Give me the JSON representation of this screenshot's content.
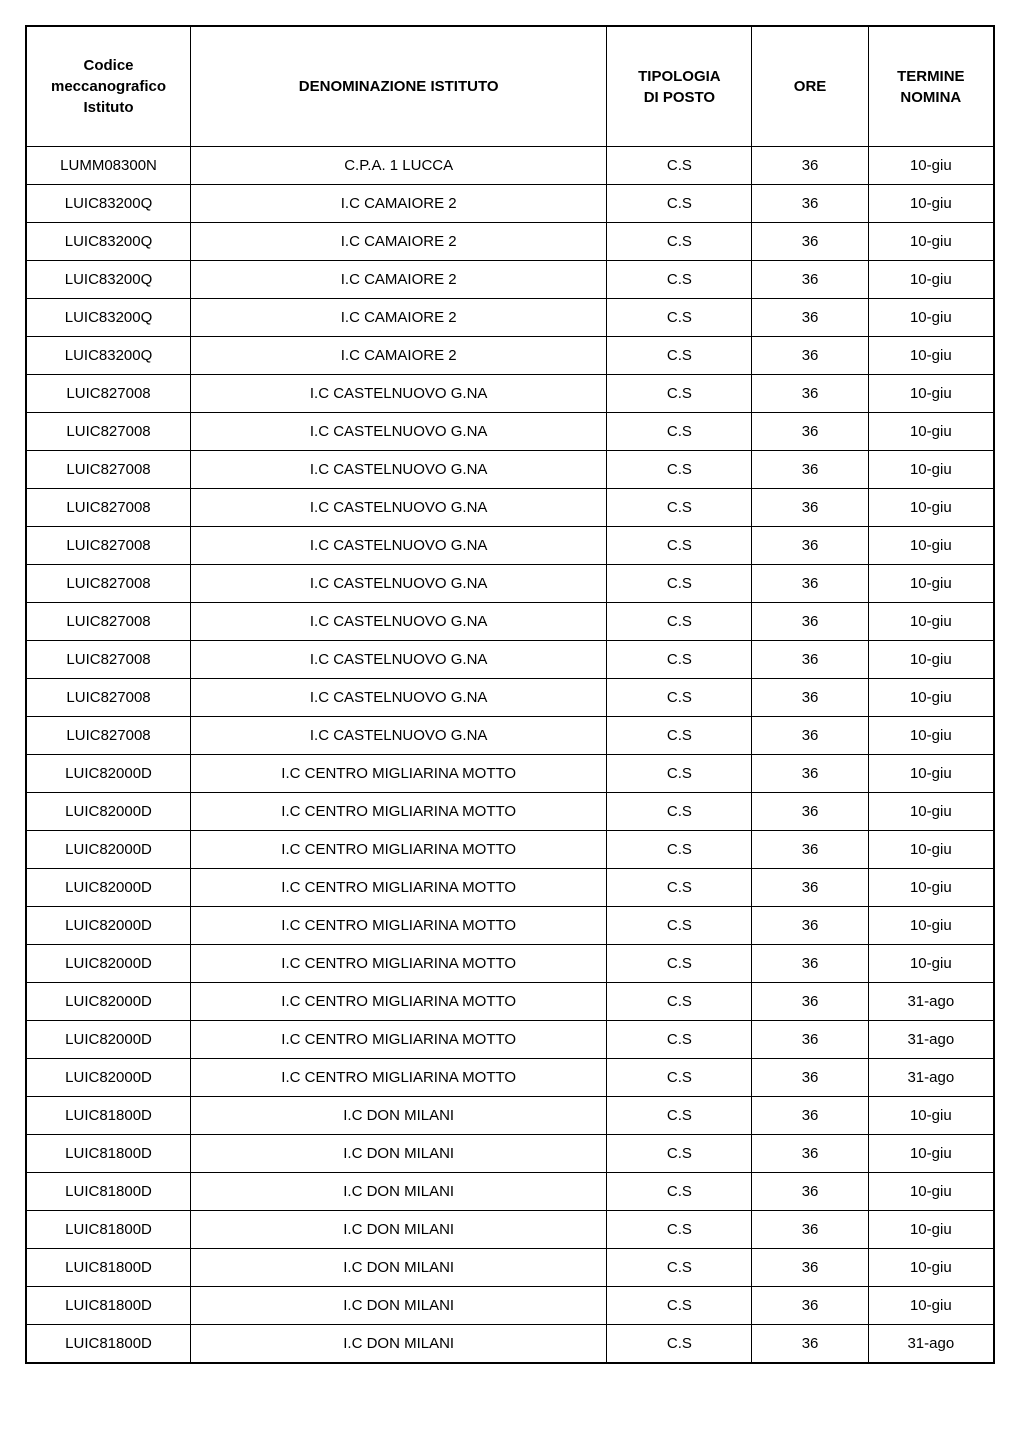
{
  "table": {
    "columns": [
      {
        "key": "codice",
        "label_lines": [
          "Codice",
          "meccanografico",
          "Istituto"
        ],
        "width": "17%",
        "align": "center",
        "font_weight": "bold"
      },
      {
        "key": "denominazione",
        "label_lines": [
          "DENOMINAZIONE ISTITUTO"
        ],
        "width": "43%",
        "align": "center",
        "font_weight": "bold"
      },
      {
        "key": "tipologia",
        "label_lines": [
          "TIPOLOGIA",
          "DI POSTO"
        ],
        "width": "15%",
        "align": "center",
        "font_weight": "bold"
      },
      {
        "key": "ore",
        "label_lines": [
          "ORE"
        ],
        "width": "12%",
        "align": "center",
        "font_weight": "bold"
      },
      {
        "key": "termine",
        "label_lines": [
          "TERMINE",
          "NOMINA"
        ],
        "width": "13%",
        "align": "center",
        "font_weight": "bold"
      }
    ],
    "rows": [
      [
        "LUMM08300N",
        "C.P.A. 1 LUCCA",
        "C.S",
        "36",
        "10-giu"
      ],
      [
        "LUIC83200Q",
        "I.C CAMAIORE 2",
        "C.S",
        "36",
        "10-giu"
      ],
      [
        "LUIC83200Q",
        "I.C CAMAIORE 2",
        "C.S",
        "36",
        "10-giu"
      ],
      [
        "LUIC83200Q",
        "I.C CAMAIORE 2",
        "C.S",
        "36",
        "10-giu"
      ],
      [
        "LUIC83200Q",
        "I.C CAMAIORE 2",
        "C.S",
        "36",
        "10-giu"
      ],
      [
        "LUIC83200Q",
        "I.C CAMAIORE 2",
        "C.S",
        "36",
        "10-giu"
      ],
      [
        "LUIC827008",
        "I.C CASTELNUOVO G.NA",
        "C.S",
        "36",
        "10-giu"
      ],
      [
        "LUIC827008",
        "I.C CASTELNUOVO G.NA",
        "C.S",
        "36",
        "10-giu"
      ],
      [
        "LUIC827008",
        "I.C CASTELNUOVO G.NA",
        "C.S",
        "36",
        "10-giu"
      ],
      [
        "LUIC827008",
        "I.C CASTELNUOVO G.NA",
        "C.S",
        "36",
        "10-giu"
      ],
      [
        "LUIC827008",
        "I.C CASTELNUOVO G.NA",
        "C.S",
        "36",
        "10-giu"
      ],
      [
        "LUIC827008",
        "I.C CASTELNUOVO G.NA",
        "C.S",
        "36",
        "10-giu"
      ],
      [
        "LUIC827008",
        "I.C CASTELNUOVO G.NA",
        "C.S",
        "36",
        "10-giu"
      ],
      [
        "LUIC827008",
        "I.C CASTELNUOVO G.NA",
        "C.S",
        "36",
        "10-giu"
      ],
      [
        "LUIC827008",
        "I.C CASTELNUOVO G.NA",
        "C.S",
        "36",
        "10-giu"
      ],
      [
        "LUIC827008",
        "I.C CASTELNUOVO G.NA",
        "C.S",
        "36",
        "10-giu"
      ],
      [
        "LUIC82000D",
        "I.C CENTRO MIGLIARINA MOTTO",
        "C.S",
        "36",
        "10-giu"
      ],
      [
        "LUIC82000D",
        "I.C CENTRO MIGLIARINA MOTTO",
        "C.S",
        "36",
        "10-giu"
      ],
      [
        "LUIC82000D",
        "I.C CENTRO MIGLIARINA MOTTO",
        "C.S",
        "36",
        "10-giu"
      ],
      [
        "LUIC82000D",
        "I.C CENTRO MIGLIARINA MOTTO",
        "C.S",
        "36",
        "10-giu"
      ],
      [
        "LUIC82000D",
        "I.C CENTRO MIGLIARINA MOTTO",
        "C.S",
        "36",
        "10-giu"
      ],
      [
        "LUIC82000D",
        "I.C CENTRO MIGLIARINA MOTTO",
        "C.S",
        "36",
        "10-giu"
      ],
      [
        "LUIC82000D",
        "I.C CENTRO MIGLIARINA MOTTO",
        "C.S",
        "36",
        "31-ago"
      ],
      [
        "LUIC82000D",
        "I.C CENTRO MIGLIARINA MOTTO",
        "C.S",
        "36",
        "31-ago"
      ],
      [
        "LUIC82000D",
        "I.C CENTRO MIGLIARINA MOTTO",
        "C.S",
        "36",
        "31-ago"
      ],
      [
        "LUIC81800D",
        "I.C DON MILANI",
        "C.S",
        "36",
        "10-giu"
      ],
      [
        "LUIC81800D",
        "I.C DON MILANI",
        "C.S",
        "36",
        "10-giu"
      ],
      [
        "LUIC81800D",
        "I.C DON MILANI",
        "C.S",
        "36",
        "10-giu"
      ],
      [
        "LUIC81800D",
        "I.C DON MILANI",
        "C.S",
        "36",
        "10-giu"
      ],
      [
        "LUIC81800D",
        "I.C DON MILANI",
        "C.S",
        "36",
        "10-giu"
      ],
      [
        "LUIC81800D",
        "I.C DON MILANI",
        "C.S",
        "36",
        "10-giu"
      ],
      [
        "LUIC81800D",
        "I.C DON MILANI",
        "C.S",
        "36",
        "31-ago"
      ]
    ],
    "styling": {
      "border_color": "#000000",
      "outer_border_width": "2px",
      "inner_border_width": "1px",
      "background_color": "#ffffff",
      "text_color": "#000000",
      "cell_font_size": 15,
      "header_font_size": 15,
      "cell_padding": "10px 12px",
      "header_padding": "28px 12px",
      "font_family": "Arial, Helvetica, sans-serif"
    }
  }
}
